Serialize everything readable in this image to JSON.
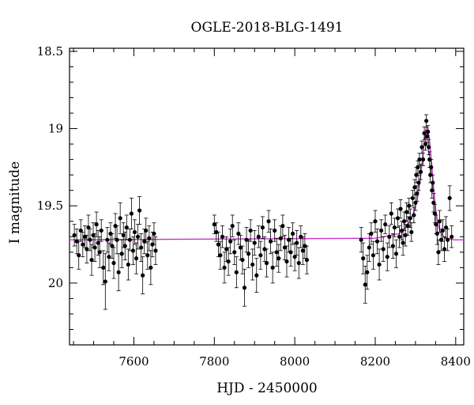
{
  "chart_data": {
    "type": "scatter",
    "title": "OGLE-2018-BLG-1491",
    "xlabel": "HJD - 2450000",
    "ylabel": "I magnitude",
    "xlim": [
      7440,
      8420
    ],
    "ylim": [
      20.4,
      18.48
    ],
    "y_inverted": true,
    "x_ticks": [
      7600,
      7800,
      8000,
      8200,
      8400
    ],
    "x_tick_labels": [
      "7600",
      "7800",
      "8000",
      "8200",
      "8400"
    ],
    "y_ticks": [
      18.5,
      19,
      19.5,
      20
    ],
    "y_tick_labels": [
      "18.5",
      "19",
      "19.5",
      "20"
    ],
    "grid": false,
    "legend": "none",
    "colors": {
      "points": "#000000",
      "model": "#cc33cc"
    },
    "series": [
      {
        "kind": "points_with_errorbars",
        "points": [
          [
            7452,
            19.69,
            0.07
          ],
          [
            7458,
            19.73,
            0.08
          ],
          [
            7463,
            19.82,
            0.09
          ],
          [
            7468,
            19.66,
            0.07
          ],
          [
            7473,
            19.75,
            0.08
          ],
          [
            7478,
            19.7,
            0.07
          ],
          [
            7483,
            19.78,
            0.09
          ],
          [
            7487,
            19.64,
            0.08
          ],
          [
            7491,
            19.72,
            0.07
          ],
          [
            7495,
            19.85,
            0.1
          ],
          [
            7499,
            19.69,
            0.08
          ],
          [
            7503,
            19.77,
            0.09
          ],
          [
            7507,
            19.62,
            0.08
          ],
          [
            7511,
            19.74,
            0.08
          ],
          [
            7515,
            19.8,
            0.1
          ],
          [
            7519,
            19.66,
            0.07
          ],
          [
            7524,
            19.9,
            0.11
          ],
          [
            7529,
            19.99,
            0.18
          ],
          [
            7534,
            19.72,
            0.08
          ],
          [
            7538,
            19.83,
            0.09
          ],
          [
            7542,
            19.68,
            0.07
          ],
          [
            7546,
            19.76,
            0.08
          ],
          [
            7550,
            19.87,
            0.1
          ],
          [
            7554,
            19.63,
            0.08
          ],
          [
            7558,
            19.72,
            0.09
          ],
          [
            7562,
            19.93,
            0.12
          ],
          [
            7566,
            19.58,
            0.1
          ],
          [
            7570,
            19.81,
            0.09
          ],
          [
            7574,
            19.69,
            0.08
          ],
          [
            7578,
            19.76,
            0.09
          ],
          [
            7582,
            19.64,
            0.08
          ],
          [
            7586,
            19.88,
            0.1
          ],
          [
            7590,
            19.72,
            0.07
          ],
          [
            7594,
            19.55,
            0.1
          ],
          [
            7598,
            19.79,
            0.09
          ],
          [
            7602,
            19.67,
            0.08
          ],
          [
            7606,
            19.84,
            0.1
          ],
          [
            7610,
            19.7,
            0.08
          ],
          [
            7614,
            19.53,
            0.09
          ],
          [
            7618,
            19.77,
            0.09
          ],
          [
            7622,
            19.95,
            0.12
          ],
          [
            7626,
            19.73,
            0.08
          ],
          [
            7630,
            19.66,
            0.08
          ],
          [
            7634,
            19.82,
            0.09
          ],
          [
            7638,
            19.71,
            0.08
          ],
          [
            7642,
            19.9,
            0.11
          ],
          [
            7646,
            19.75,
            0.08
          ],
          [
            7650,
            19.68,
            0.07
          ],
          [
            7654,
            19.79,
            0.09
          ],
          [
            7800,
            19.62,
            0.06
          ],
          [
            7805,
            19.67,
            0.06
          ],
          [
            7810,
            19.75,
            0.08
          ],
          [
            7815,
            19.82,
            0.09
          ],
          [
            7820,
            19.7,
            0.07
          ],
          [
            7825,
            19.9,
            0.1
          ],
          [
            7830,
            19.78,
            0.08
          ],
          [
            7835,
            19.86,
            0.09
          ],
          [
            7840,
            19.73,
            0.08
          ],
          [
            7845,
            19.63,
            0.07
          ],
          [
            7850,
            19.8,
            0.08
          ],
          [
            7855,
            19.93,
            0.1
          ],
          [
            7860,
            19.68,
            0.07
          ],
          [
            7865,
            19.77,
            0.08
          ],
          [
            7870,
            19.85,
            0.09
          ],
          [
            7875,
            20.03,
            0.12
          ],
          [
            7880,
            19.72,
            0.08
          ],
          [
            7885,
            19.81,
            0.09
          ],
          [
            7890,
            19.66,
            0.07
          ],
          [
            7895,
            19.88,
            0.1
          ],
          [
            7900,
            19.74,
            0.08
          ],
          [
            7905,
            19.95,
            0.11
          ],
          [
            7910,
            19.7,
            0.07
          ],
          [
            7915,
            19.82,
            0.09
          ],
          [
            7920,
            19.64,
            0.07
          ],
          [
            7925,
            19.78,
            0.08
          ],
          [
            7930,
            19.87,
            0.09
          ],
          [
            7935,
            19.6,
            0.07
          ],
          [
            7940,
            19.73,
            0.08
          ],
          [
            7945,
            19.9,
            0.1
          ],
          [
            7950,
            19.66,
            0.07
          ],
          [
            7955,
            19.8,
            0.09
          ],
          [
            7960,
            19.84,
            0.09
          ],
          [
            7965,
            19.71,
            0.08
          ],
          [
            7970,
            19.63,
            0.07
          ],
          [
            7975,
            19.77,
            0.08
          ],
          [
            7980,
            19.86,
            0.1
          ],
          [
            7985,
            19.72,
            0.08
          ],
          [
            7990,
            19.8,
            0.09
          ],
          [
            7995,
            19.68,
            0.07
          ],
          [
            8000,
            19.83,
            0.09
          ],
          [
            8005,
            19.74,
            0.08
          ],
          [
            8010,
            19.87,
            0.1
          ],
          [
            8015,
            19.7,
            0.07
          ],
          [
            8020,
            19.79,
            0.09
          ],
          [
            8025,
            19.76,
            0.08
          ],
          [
            8030,
            19.85,
            0.09
          ],
          [
            8165,
            19.72,
            0.08
          ],
          [
            8170,
            19.84,
            0.1
          ],
          [
            8175,
            20.01,
            0.12
          ],
          [
            8180,
            19.93,
            0.11
          ],
          [
            8185,
            19.77,
            0.09
          ],
          [
            8190,
            19.68,
            0.07
          ],
          [
            8195,
            19.82,
            0.09
          ],
          [
            8200,
            19.6,
            0.07
          ],
          [
            8205,
            19.73,
            0.08
          ],
          [
            8210,
            19.88,
            0.1
          ],
          [
            8215,
            19.66,
            0.07
          ],
          [
            8220,
            19.78,
            0.08
          ],
          [
            8225,
            19.62,
            0.06
          ],
          [
            8230,
            19.83,
            0.09
          ],
          [
            8235,
            19.7,
            0.07
          ],
          [
            8240,
            19.55,
            0.07
          ],
          [
            8244,
            19.76,
            0.08
          ],
          [
            8248,
            19.64,
            0.06
          ],
          [
            8252,
            19.81,
            0.09
          ],
          [
            8256,
            19.58,
            0.06
          ],
          [
            8260,
            19.7,
            0.07
          ],
          [
            8263,
            19.52,
            0.06
          ],
          [
            8266,
            19.66,
            0.06
          ],
          [
            8269,
            19.74,
            0.08
          ],
          [
            8272,
            19.6,
            0.06
          ],
          [
            8275,
            19.69,
            0.07
          ],
          [
            8278,
            19.54,
            0.06
          ],
          [
            8281,
            19.63,
            0.06
          ],
          [
            8284,
            19.5,
            0.05
          ],
          [
            8287,
            19.58,
            0.06
          ],
          [
            8290,
            19.67,
            0.06
          ],
          [
            8293,
            19.45,
            0.05
          ],
          [
            8296,
            19.56,
            0.05
          ],
          [
            8298,
            19.38,
            0.05
          ],
          [
            8300,
            19.48,
            0.05
          ],
          [
            8302,
            19.3,
            0.05
          ],
          [
            8304,
            19.42,
            0.05
          ],
          [
            8306,
            19.25,
            0.04
          ],
          [
            8308,
            19.35,
            0.05
          ],
          [
            8310,
            19.2,
            0.04
          ],
          [
            8313,
            19.28,
            0.05
          ],
          [
            8316,
            19.12,
            0.04
          ],
          [
            8319,
            19.2,
            0.04
          ],
          [
            8322,
            19.03,
            0.04
          ],
          [
            8325,
            19.1,
            0.04
          ],
          [
            8327,
            18.95,
            0.04
          ],
          [
            8329,
            19.05,
            0.04
          ],
          [
            8331,
            19.02,
            0.04
          ],
          [
            8333,
            19.12,
            0.05
          ],
          [
            8335,
            19.2,
            0.05
          ],
          [
            8337,
            19.3,
            0.05
          ],
          [
            8339,
            19.25,
            0.05
          ],
          [
            8341,
            19.4,
            0.05
          ],
          [
            8343,
            19.35,
            0.05
          ],
          [
            8345,
            19.48,
            0.06
          ],
          [
            8348,
            19.55,
            0.06
          ],
          [
            8351,
            19.62,
            0.06
          ],
          [
            8354,
            19.68,
            0.07
          ],
          [
            8357,
            19.8,
            0.08
          ],
          [
            8360,
            19.6,
            0.07
          ],
          [
            8364,
            19.72,
            0.07
          ],
          [
            8368,
            19.66,
            0.07
          ],
          [
            8372,
            19.78,
            0.08
          ],
          [
            8376,
            19.64,
            0.07
          ],
          [
            8380,
            19.72,
            0.07
          ],
          [
            8385,
            19.45,
            0.08
          ],
          [
            8390,
            19.7,
            0.07
          ]
        ]
      },
      {
        "kind": "model_line",
        "x": [
          7440,
          8200,
          8260,
          8280,
          8295,
          8305,
          8312,
          8318,
          8323,
          8327,
          8331,
          8335,
          8340,
          8345,
          8350,
          8356,
          8362,
          8370,
          8380,
          8395,
          8420
        ],
        "y": [
          19.72,
          19.71,
          19.68,
          19.63,
          19.55,
          19.45,
          19.33,
          19.18,
          19.05,
          18.99,
          19.0,
          19.08,
          19.22,
          19.38,
          19.52,
          19.62,
          19.67,
          19.7,
          19.71,
          19.72,
          19.72
        ]
      }
    ]
  }
}
